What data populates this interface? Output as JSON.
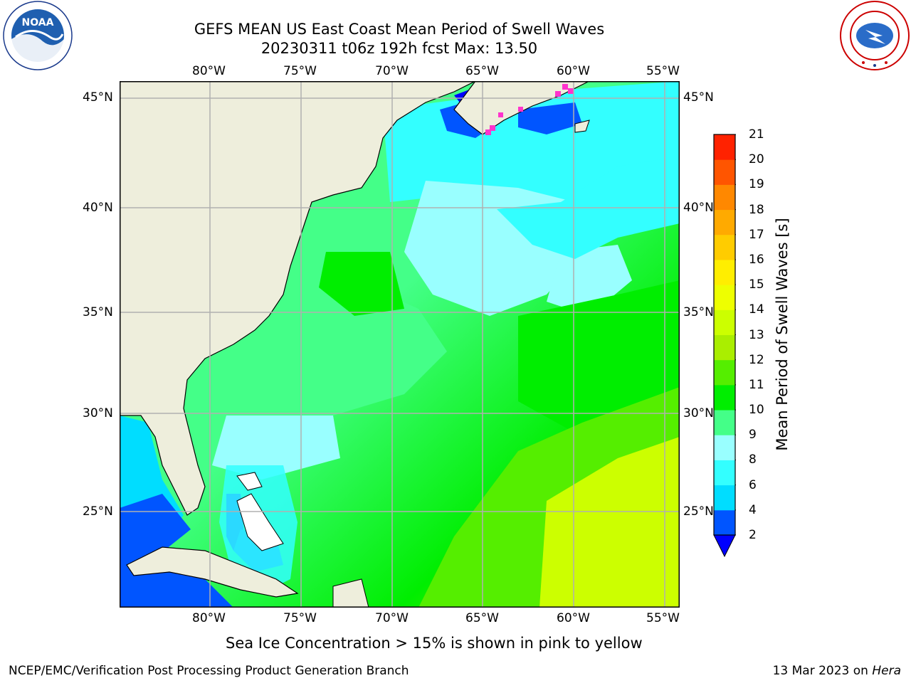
{
  "header": {
    "title_line1": "GEFS MEAN US East Coast Mean Period of Swell Waves",
    "title_line2": "20230311 t06z 192h fcst   Max: 13.50"
  },
  "logos": {
    "left": {
      "icon": "noaa-logo",
      "text": "NOAA",
      "ring_text": "NATIONAL OCEANIC AND ATMOSPHERIC ADMINISTRATION · U.S. DEPARTMENT OF COMMERCE"
    },
    "right": {
      "icon": "nws-logo",
      "ring_text": "NATIONAL WEATHER SERVICE"
    }
  },
  "map": {
    "lon_labels": [
      "80°W",
      "75°W",
      "70°W",
      "65°W",
      "60°W",
      "55°W"
    ],
    "lat_labels": [
      "45°N",
      "40°N",
      "35°N",
      "30°N",
      "25°N"
    ],
    "land_color": "#eeeedc",
    "ice_color": "#ff33cc"
  },
  "colorbar": {
    "label": "Mean Period of Swell Waves [s]",
    "ticks": [
      "2",
      "4",
      "6",
      "8",
      "9",
      "10",
      "11",
      "12",
      "13",
      "14",
      "15",
      "16",
      "17",
      "18",
      "19",
      "20",
      "21"
    ],
    "colors": [
      "#0055ff",
      "#00ddff",
      "#33ffff",
      "#99ffff",
      "#44ff88",
      "#00ee00",
      "#55ee00",
      "#aaee00",
      "#ccff00",
      "#eeff00",
      "#ffee00",
      "#ffcc00",
      "#ffaa00",
      "#ff8800",
      "#ff5500",
      "#ff2200",
      "#ff0000"
    ],
    "extend_color": "#0000ff"
  },
  "note": "Sea Ice Concentration > 15% is shown in pink to yellow",
  "footer": {
    "left": "NCEP/EMC/Verification Post Processing Product Generation Branch",
    "right_date": "13 Mar 2023 on",
    "right_host": "Hera"
  }
}
